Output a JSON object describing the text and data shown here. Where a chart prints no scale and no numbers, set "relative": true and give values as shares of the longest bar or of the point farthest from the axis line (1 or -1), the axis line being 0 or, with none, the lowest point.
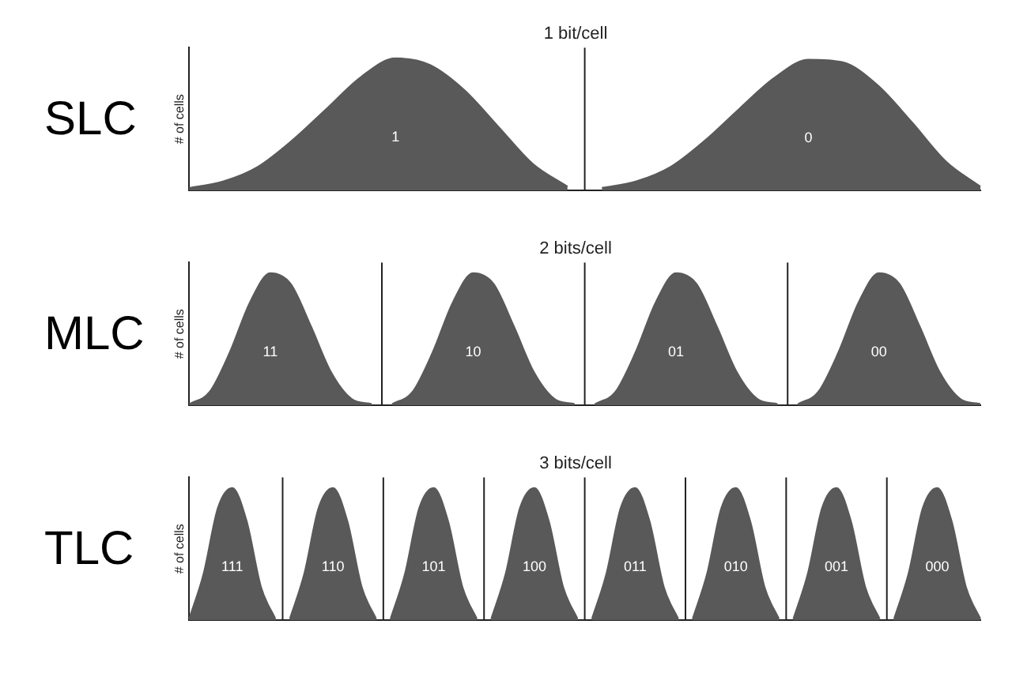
{
  "chart_data": [
    {
      "type": "area",
      "title": "1 bit/cell",
      "ylabel": "# of cells",
      "annotations": [
        "SLC"
      ],
      "relative": true,
      "categories": [
        null,
        null,
        null,
        null,
        null,
        null,
        null,
        null,
        null,
        null,
        null,
        null,
        null,
        null,
        null,
        null,
        null,
        null,
        null,
        null,
        null,
        null,
        null,
        null
      ],
      "series": [
        {
          "name": "1",
          "color": "#595959",
          "values": [
            0.02,
            0.07,
            0.18,
            0.38,
            0.62,
            0.86,
            1,
            0.95,
            0.76,
            0.48,
            0.2,
            0.03,
            null,
            null,
            null,
            null,
            null,
            null,
            null,
            null,
            null,
            null,
            null,
            null
          ]
        },
        {
          "name": "0",
          "color": "#595959",
          "values": [
            null,
            null,
            null,
            null,
            null,
            null,
            null,
            null,
            null,
            null,
            null,
            null,
            0.02,
            0.07,
            0.18,
            0.38,
            0.62,
            0.85,
            0.99,
            0.97,
            0.8,
            0.52,
            0.22,
            0.03
          ]
        }
      ]
    },
    {
      "type": "area",
      "title": "2 bits/cell",
      "ylabel": "# of cells",
      "annotations": [
        "MLC"
      ],
      "relative": true,
      "categories": [
        null,
        null,
        null,
        null,
        null,
        null,
        null,
        null,
        null,
        null,
        null,
        null,
        null,
        null,
        null,
        null,
        null,
        null,
        null,
        null,
        null,
        null,
        null,
        null,
        null,
        null,
        null,
        null,
        null,
        null,
        null,
        null,
        null,
        null,
        null,
        null,
        null,
        null,
        null,
        null
      ],
      "series": [
        {
          "name": "11",
          "color": "#595959",
          "values": [
            0.01,
            0.1,
            0.4,
            0.78,
            1,
            0.92,
            0.6,
            0.25,
            0.05,
            0.01,
            null,
            null,
            null,
            null,
            null,
            null,
            null,
            null,
            null,
            null,
            null,
            null,
            null,
            null,
            null,
            null,
            null,
            null,
            null,
            null,
            null,
            null,
            null,
            null,
            null,
            null,
            null,
            null,
            null,
            null
          ]
        },
        {
          "name": "10",
          "color": "#595959",
          "values": [
            null,
            null,
            null,
            null,
            null,
            null,
            null,
            null,
            null,
            null,
            0.01,
            0.1,
            0.4,
            0.78,
            1,
            0.92,
            0.6,
            0.25,
            0.05,
            0.01,
            null,
            null,
            null,
            null,
            null,
            null,
            null,
            null,
            null,
            null,
            null,
            null,
            null,
            null,
            null,
            null,
            null,
            null,
            null,
            null
          ]
        },
        {
          "name": "01",
          "color": "#595959",
          "values": [
            null,
            null,
            null,
            null,
            null,
            null,
            null,
            null,
            null,
            null,
            null,
            null,
            null,
            null,
            null,
            null,
            null,
            null,
            null,
            null,
            0.01,
            0.1,
            0.4,
            0.78,
            1,
            0.92,
            0.6,
            0.25,
            0.05,
            0.01,
            null,
            null,
            null,
            null,
            null,
            null,
            null,
            null,
            null,
            null
          ]
        },
        {
          "name": "00",
          "color": "#595959",
          "values": [
            null,
            null,
            null,
            null,
            null,
            null,
            null,
            null,
            null,
            null,
            null,
            null,
            null,
            null,
            null,
            null,
            null,
            null,
            null,
            null,
            null,
            null,
            null,
            null,
            null,
            null,
            null,
            null,
            null,
            null,
            0.01,
            0.1,
            0.4,
            0.78,
            1,
            0.92,
            0.6,
            0.25,
            0.05,
            0.01
          ]
        }
      ]
    },
    {
      "type": "area",
      "title": "3 bits/cell",
      "ylabel": "# of cells",
      "annotations": [
        "TLC"
      ],
      "relative": true,
      "categories": [
        null,
        null,
        null,
        null,
        null,
        null,
        null,
        null,
        null,
        null,
        null,
        null,
        null,
        null,
        null,
        null,
        null,
        null,
        null,
        null,
        null,
        null,
        null,
        null,
        null,
        null,
        null,
        null,
        null,
        null,
        null,
        null,
        null,
        null,
        null,
        null,
        null,
        null,
        null,
        null,
        null,
        null,
        null,
        null,
        null,
        null,
        null,
        null,
        null,
        null,
        null,
        null,
        null,
        null,
        null,
        null
      ],
      "series": [
        {
          "name": "111",
          "color": "#595959",
          "values": [
            0.01,
            0.35,
            0.85,
            1,
            0.75,
            0.25,
            0.01,
            null,
            null,
            null,
            null,
            null,
            null,
            null,
            null,
            null,
            null,
            null,
            null,
            null,
            null,
            null,
            null,
            null,
            null,
            null,
            null,
            null,
            null,
            null,
            null,
            null,
            null,
            null,
            null,
            null,
            null,
            null,
            null,
            null,
            null,
            null,
            null,
            null,
            null,
            null,
            null,
            null,
            null,
            null,
            null,
            null,
            null,
            null,
            null,
            null
          ]
        },
        {
          "name": "110",
          "color": "#595959",
          "values": [
            null,
            null,
            null,
            null,
            null,
            null,
            null,
            0.01,
            0.35,
            0.85,
            1,
            0.75,
            0.25,
            0.01,
            null,
            null,
            null,
            null,
            null,
            null,
            null,
            null,
            null,
            null,
            null,
            null,
            null,
            null,
            null,
            null,
            null,
            null,
            null,
            null,
            null,
            null,
            null,
            null,
            null,
            null,
            null,
            null,
            null,
            null,
            null,
            null,
            null,
            null,
            null,
            null,
            null,
            null,
            null,
            null,
            null,
            null
          ]
        },
        {
          "name": "101",
          "color": "#595959",
          "values": [
            null,
            null,
            null,
            null,
            null,
            null,
            null,
            null,
            null,
            null,
            null,
            null,
            null,
            null,
            0.01,
            0.35,
            0.85,
            1,
            0.75,
            0.25,
            0.01,
            null,
            null,
            null,
            null,
            null,
            null,
            null,
            null,
            null,
            null,
            null,
            null,
            null,
            null,
            null,
            null,
            null,
            null,
            null,
            null,
            null,
            null,
            null,
            null,
            null,
            null,
            null,
            null,
            null,
            null,
            null,
            null,
            null,
            null,
            null
          ]
        },
        {
          "name": "100",
          "color": "#595959",
          "values": [
            null,
            null,
            null,
            null,
            null,
            null,
            null,
            null,
            null,
            null,
            null,
            null,
            null,
            null,
            null,
            null,
            null,
            null,
            null,
            null,
            null,
            0.01,
            0.35,
            0.85,
            1,
            0.75,
            0.25,
            0.01,
            null,
            null,
            null,
            null,
            null,
            null,
            null,
            null,
            null,
            null,
            null,
            null,
            null,
            null,
            null,
            null,
            null,
            null,
            null,
            null,
            null,
            null,
            null,
            null,
            null,
            null,
            null,
            null
          ]
        },
        {
          "name": "011",
          "color": "#595959",
          "values": [
            null,
            null,
            null,
            null,
            null,
            null,
            null,
            null,
            null,
            null,
            null,
            null,
            null,
            null,
            null,
            null,
            null,
            null,
            null,
            null,
            null,
            null,
            null,
            null,
            null,
            null,
            null,
            null,
            0.01,
            0.35,
            0.85,
            1,
            0.75,
            0.25,
            0.01,
            null,
            null,
            null,
            null,
            null,
            null,
            null,
            null,
            null,
            null,
            null,
            null,
            null,
            null,
            null,
            null,
            null,
            null,
            null,
            null,
            null
          ]
        },
        {
          "name": "010",
          "color": "#595959",
          "values": [
            null,
            null,
            null,
            null,
            null,
            null,
            null,
            null,
            null,
            null,
            null,
            null,
            null,
            null,
            null,
            null,
            null,
            null,
            null,
            null,
            null,
            null,
            null,
            null,
            null,
            null,
            null,
            null,
            null,
            null,
            null,
            null,
            null,
            null,
            null,
            0.01,
            0.35,
            0.85,
            1,
            0.75,
            0.25,
            0.01,
            null,
            null,
            null,
            null,
            null,
            null,
            null,
            null,
            null,
            null,
            null,
            null,
            null,
            null
          ]
        },
        {
          "name": "001",
          "color": "#595959",
          "values": [
            null,
            null,
            null,
            null,
            null,
            null,
            null,
            null,
            null,
            null,
            null,
            null,
            null,
            null,
            null,
            null,
            null,
            null,
            null,
            null,
            null,
            null,
            null,
            null,
            null,
            null,
            null,
            null,
            null,
            null,
            null,
            null,
            null,
            null,
            null,
            null,
            null,
            null,
            null,
            null,
            null,
            null,
            0.01,
            0.35,
            0.85,
            1,
            0.75,
            0.25,
            0.01,
            null,
            null,
            null,
            null,
            null,
            null,
            null
          ]
        },
        {
          "name": "000",
          "color": "#595959",
          "values": [
            null,
            null,
            null,
            null,
            null,
            null,
            null,
            null,
            null,
            null,
            null,
            null,
            null,
            null,
            null,
            null,
            null,
            null,
            null,
            null,
            null,
            null,
            null,
            null,
            null,
            null,
            null,
            null,
            null,
            null,
            null,
            null,
            null,
            null,
            null,
            null,
            null,
            null,
            null,
            null,
            null,
            null,
            null,
            null,
            null,
            null,
            null,
            null,
            null,
            0.01,
            0.35,
            0.85,
            1,
            0.75,
            0.25,
            0.01
          ]
        }
      ]
    }
  ]
}
